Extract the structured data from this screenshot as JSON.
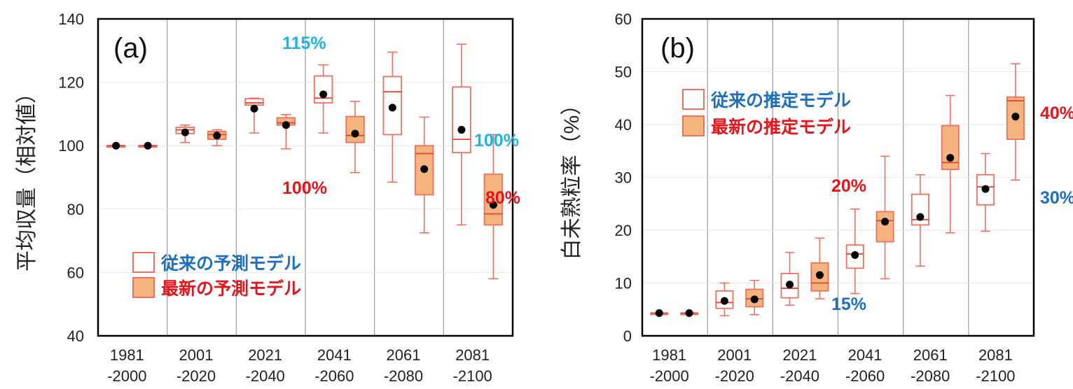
{
  "chart_data": [
    {
      "type": "box",
      "panel_label": "(a)",
      "ylabel": "平均収量（相対値）",
      "ylim": [
        40,
        140
      ],
      "yticks": [
        40,
        60,
        80,
        100,
        120,
        140
      ],
      "categories": [
        "1981\n-2000",
        "2001\n-2020",
        "2021\n-2040",
        "2041\n-2060",
        "2061\n-2080",
        "2081\n-2100"
      ],
      "grid": "vertical lines between periods",
      "legend_position": "bottom-left",
      "series": [
        {
          "name": "従来の予測モデル",
          "style": "hollow",
          "boxes": [
            {
              "period": "1981-2000",
              "min": 100,
              "q1": 100,
              "median": 100,
              "q3": 100,
              "max": 100,
              "mean": 100
            },
            {
              "period": "2001-2020",
              "min": 101,
              "q1": 103.8,
              "median": 105,
              "q3": 105.8,
              "max": 106.5,
              "mean": 104.2
            },
            {
              "period": "2021-2040",
              "min": 104,
              "q1": 112.8,
              "median": 113.5,
              "q3": 114.8,
              "max": 115,
              "mean": 111.7
            },
            {
              "period": "2041-2060",
              "min": 104,
              "q1": 113.5,
              "median": 115,
              "q3": 122,
              "max": 125.5,
              "mean": 116.2
            },
            {
              "period": "2061-2080",
              "min": 88.5,
              "q1": 103.5,
              "median": 117,
              "q3": 121.8,
              "max": 129.5,
              "mean": 112
            },
            {
              "period": "2081-2100",
              "min": 75,
              "q1": 97.8,
              "median": 102,
              "q3": 118.5,
              "max": 132,
              "mean": 105
            }
          ]
        },
        {
          "name": "最新の予測モデル",
          "style": "filled",
          "boxes": [
            {
              "period": "1981-2000",
              "min": 100,
              "q1": 100,
              "median": 100,
              "q3": 100,
              "max": 100,
              "mean": 100
            },
            {
              "period": "2001-2020",
              "min": 100,
              "q1": 102,
              "median": 103.5,
              "q3": 104.5,
              "max": 105,
              "mean": 103.2
            },
            {
              "period": "2021-2040",
              "min": 99,
              "q1": 106.5,
              "median": 107.2,
              "q3": 108.8,
              "max": 109.8,
              "mean": 106.5
            },
            {
              "period": "2041-2060",
              "min": 91.5,
              "q1": 101,
              "median": 103.2,
              "q3": 109.2,
              "max": 114,
              "mean": 103.8
            },
            {
              "period": "2061-2080",
              "min": 72.5,
              "q1": 84.5,
              "median": 97.5,
              "q3": 100,
              "max": 109,
              "mean": 92.6
            },
            {
              "period": "2081-2100",
              "min": 58,
              "q1": 75,
              "median": 78.5,
              "q3": 91,
              "max": 103.5,
              "mean": 81.3
            }
          ]
        }
      ]
    },
    {
      "type": "box",
      "panel_label": "(b)",
      "ylabel": "白未熟粒率（%）",
      "ylim": [
        0,
        60
      ],
      "yticks": [
        0,
        10,
        20,
        30,
        40,
        50,
        60
      ],
      "categories": [
        "1981\n-2000",
        "2001\n-2020",
        "2021\n-2040",
        "2041\n-2060",
        "2061\n-2080",
        "2081\n-2100"
      ],
      "grid": "vertical lines between periods",
      "legend_position": "top-left",
      "series": [
        {
          "name": "従来の推定モデル",
          "style": "hollow",
          "boxes": [
            {
              "period": "1981-2000",
              "min": 4.3,
              "q1": 4.3,
              "median": 4.3,
              "q3": 4.3,
              "max": 4.3,
              "mean": 4.3
            },
            {
              "period": "2001-2020",
              "min": 3.8,
              "q1": 5.2,
              "median": 6.3,
              "q3": 8.5,
              "max": 10,
              "mean": 6.6
            },
            {
              "period": "2021-2040",
              "min": 5.8,
              "q1": 7.2,
              "median": 9,
              "q3": 11.8,
              "max": 15.8,
              "mean": 9.7
            },
            {
              "period": "2041-2060",
              "min": 8,
              "q1": 12.8,
              "median": 15.5,
              "q3": 17.2,
              "max": 24,
              "mean": 15.3
            },
            {
              "period": "2061-2080",
              "min": 13.2,
              "q1": 21,
              "median": 22,
              "q3": 26.8,
              "max": 30.5,
              "mean": 22.5
            },
            {
              "period": "2081-2100",
              "min": 19.8,
              "q1": 24.8,
              "median": 28.2,
              "q3": 30.5,
              "max": 34.5,
              "mean": 27.8
            }
          ]
        },
        {
          "name": "最新の推定モデル",
          "style": "filled",
          "boxes": [
            {
              "period": "1981-2000",
              "min": 4.3,
              "q1": 4.3,
              "median": 4.3,
              "q3": 4.3,
              "max": 4.3,
              "mean": 4.3
            },
            {
              "period": "2001-2020",
              "min": 4,
              "q1": 5.5,
              "median": 7,
              "q3": 8.8,
              "max": 10.5,
              "mean": 6.9
            },
            {
              "period": "2021-2040",
              "min": 7,
              "q1": 8.5,
              "median": 10,
              "q3": 13.8,
              "max": 18.5,
              "mean": 11.5
            },
            {
              "period": "2041-2060",
              "min": 10.8,
              "q1": 17.8,
              "median": 21.8,
              "q3": 23.5,
              "max": 34,
              "mean": 21.6
            },
            {
              "period": "2061-2080",
              "min": 19.5,
              "q1": 31.5,
              "median": 32.8,
              "q3": 39.8,
              "max": 45.5,
              "mean": 33.7
            },
            {
              "period": "2081-2100",
              "min": 29.5,
              "q1": 37.2,
              "median": 44.5,
              "q3": 45.2,
              "max": 51.5,
              "mean": 41.5
            }
          ]
        }
      ]
    }
  ],
  "annotations_a": [
    {
      "text": "115%",
      "color": "#1fb4e6"
    },
    {
      "text": "100%",
      "color": "#e8141c"
    },
    {
      "text": "100%",
      "color": "#1fb4e6"
    },
    {
      "text": "80%",
      "color": "#e8141c"
    }
  ],
  "annotations_b": [
    {
      "text": "20%",
      "color": "#e8141c"
    },
    {
      "text": "15%",
      "color": "#1f6fbf"
    },
    {
      "text": "40%",
      "color": "#e8141c"
    },
    {
      "text": "30%",
      "color": "#1f6fbf"
    }
  ],
  "colors": {
    "box_stroke": "#f07060",
    "box_fill": "#f5b47e",
    "median_stroke": "#e14535",
    "mean_dot": "#000000",
    "legend_text_hollow": "#1f6fbf",
    "legend_text_filled": "#e8141c",
    "axis": "#000000",
    "grid": "#9a9a9a"
  }
}
